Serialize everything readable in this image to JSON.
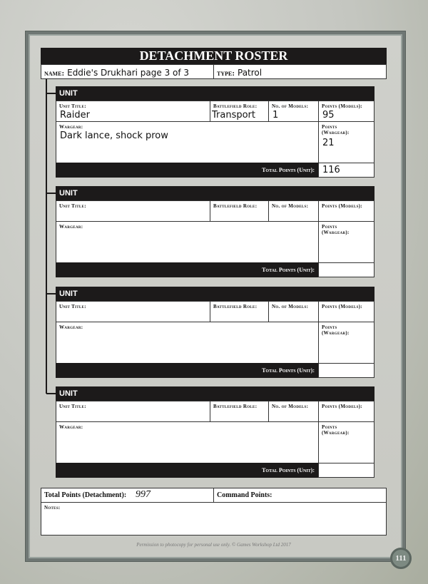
{
  "roster": {
    "title": "DETACHMENT ROSTER",
    "name_label": "name:",
    "name_value": "Eddie's Drukhari page 3 of 3",
    "type_label": "type:",
    "type_value": "Patrol"
  },
  "labels": {
    "unit": "UNIT",
    "unit_title": "Unit Title:",
    "battlefield_role": "Battlefield Role:",
    "no_models": "No. of Models:",
    "points_models": "Points (Models):",
    "wargear": "Wargear:",
    "points_wargear_1": "Points",
    "points_wargear_2": "(Wargear):",
    "total_unit": "Total Points (Unit):"
  },
  "units": [
    {
      "title": "Raider",
      "role": "Transport",
      "models": "1",
      "points_models": "95",
      "wargear": "Dark lance, shock prow",
      "points_wargear": "21",
      "total": "116"
    },
    {
      "title": "",
      "role": "",
      "models": "",
      "points_models": "",
      "wargear": "",
      "points_wargear": "",
      "total": ""
    },
    {
      "title": "",
      "role": "",
      "models": "",
      "points_models": "",
      "wargear": "",
      "points_wargear": "",
      "total": ""
    },
    {
      "title": "",
      "role": "",
      "models": "",
      "points_models": "",
      "wargear": "",
      "points_wargear": "",
      "total": ""
    }
  ],
  "detachment": {
    "total_label": "Total Points (Detachment):",
    "total_value": "997",
    "command_label": "Command Points:",
    "command_value": "",
    "notes_label": "Notes:"
  },
  "footer": {
    "copyright": "Permission to photocopy for personal use only. © Games Workshop Ltd 2017",
    "page_number": "111"
  }
}
